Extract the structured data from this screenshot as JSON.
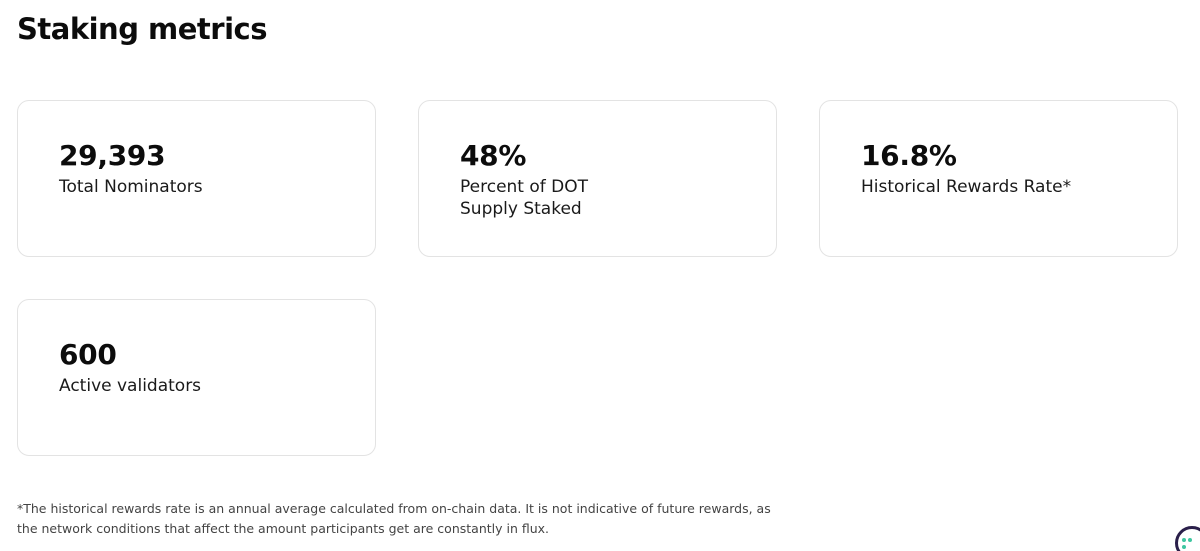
{
  "page": {
    "title": "Staking metrics"
  },
  "metrics": [
    {
      "value": "29,393",
      "label": "Total Nominators"
    },
    {
      "value": "48%",
      "label": "Percent of DOT Supply Staked"
    },
    {
      "value": "16.8%",
      "label": "Historical Rewards Rate*"
    },
    {
      "value": "600",
      "label": "Active validators"
    }
  ],
  "footnote": "*The historical rewards rate is an annual average calculated from on-chain data. It is not indicative of future rewards, as the network conditions that affect the amount participants get are constantly in flux.",
  "help_widget": {
    "icon": "chat-help-icon",
    "ring_color": "#2a1f4a",
    "dot_color": "#3ec6a0"
  }
}
